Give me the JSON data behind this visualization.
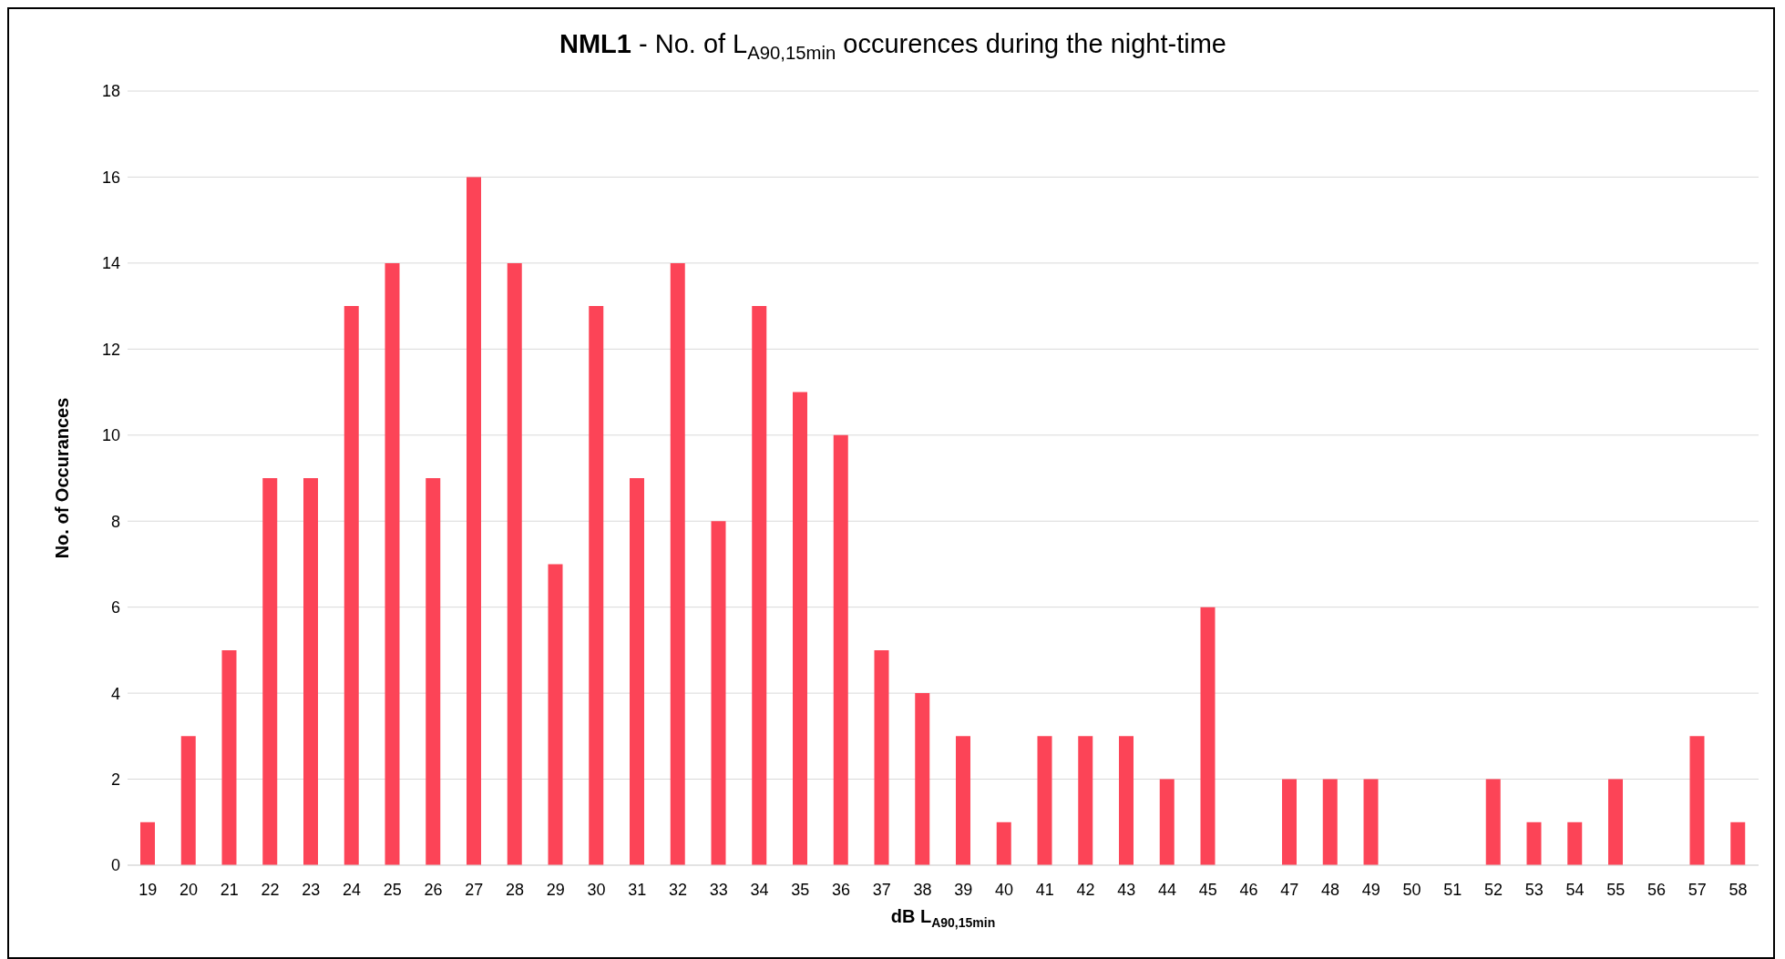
{
  "chart_data": {
    "type": "bar",
    "title": "NML1 - No. of L$_{A90,15min}$ occurences during the night-time",
    "xlabel": "dB L$_{A90,15min}$",
    "ylabel": "No. of Occurances",
    "categories": [
      "19",
      "20",
      "21",
      "22",
      "23",
      "24",
      "25",
      "26",
      "27",
      "28",
      "29",
      "30",
      "31",
      "32",
      "33",
      "34",
      "35",
      "36",
      "37",
      "38",
      "39",
      "40",
      "41",
      "42",
      "43",
      "44",
      "45",
      "46",
      "47",
      "48",
      "49",
      "50",
      "51",
      "52",
      "53",
      "54",
      "55",
      "56",
      "57",
      "58"
    ],
    "values": [
      1,
      3,
      5,
      9,
      9,
      13,
      14,
      9,
      16,
      14,
      7,
      13,
      9,
      14,
      8,
      13,
      11,
      10,
      5,
      4,
      3,
      1,
      3,
      3,
      3,
      2,
      6,
      0,
      2,
      2,
      2,
      0,
      0,
      2,
      1,
      1,
      2,
      0,
      3,
      1
    ],
    "color": "#fc4457",
    "ylim": [
      0,
      18
    ],
    "yticks": [
      0,
      2,
      4,
      6,
      8,
      10,
      12,
      14,
      16,
      18
    ],
    "grid": "y",
    "legend": false
  }
}
